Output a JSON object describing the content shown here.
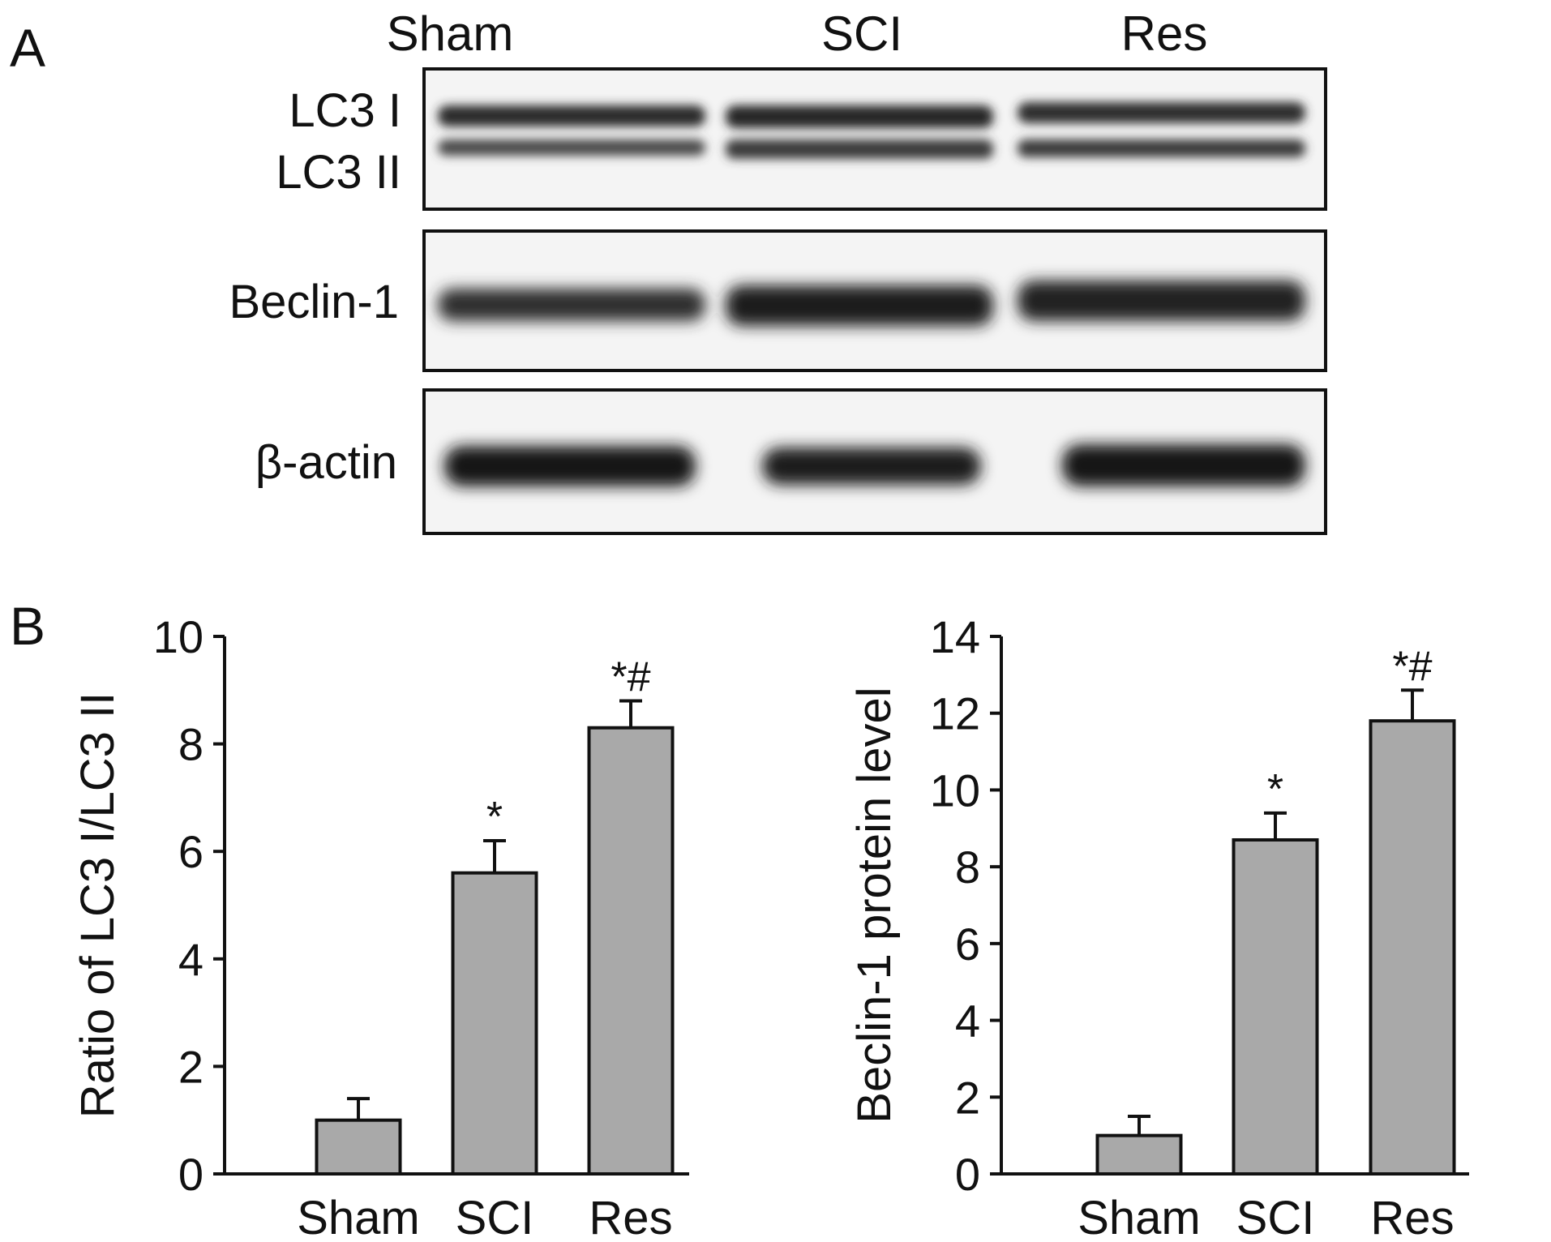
{
  "panel_a": {
    "label": "A",
    "lanes": [
      "Sham",
      "SCI",
      "Res"
    ],
    "blots": [
      {
        "labels": [
          "LC3 I",
          "LC3 II"
        ]
      },
      {
        "labels": [
          "Beclin-1"
        ]
      },
      {
        "labels": [
          "β-actin"
        ]
      }
    ]
  },
  "panel_b": {
    "label": "B"
  },
  "chart_data": [
    {
      "type": "bar",
      "categories": [
        "Sham",
        "SCI",
        "Res"
      ],
      "values": [
        1.0,
        5.6,
        8.3
      ],
      "errors": [
        0.4,
        0.6,
        0.5
      ],
      "annotations": [
        "",
        "*",
        "*#"
      ],
      "ylabel": "Ratio of LC3 I/LC3 II",
      "xlabel": "",
      "ylim": [
        0,
        10
      ],
      "yticks": [
        0,
        2,
        4,
        6,
        8,
        10
      ],
      "bar_color": "#a9a9a9",
      "grid": false
    },
    {
      "type": "bar",
      "categories": [
        "Sham",
        "SCI",
        "Res"
      ],
      "values": [
        1.0,
        8.7,
        11.8
      ],
      "errors": [
        0.5,
        0.7,
        0.8
      ],
      "annotations": [
        "",
        "*",
        "*#"
      ],
      "ylabel": "Beclin-1 protein level",
      "xlabel": "",
      "ylim": [
        0,
        14
      ],
      "yticks": [
        0,
        2,
        4,
        6,
        8,
        10,
        12,
        14
      ],
      "bar_color": "#a9a9a9",
      "grid": false
    }
  ]
}
